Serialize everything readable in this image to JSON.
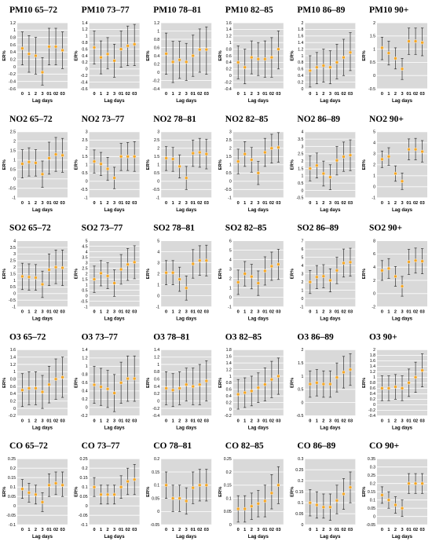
{
  "figure": {
    "ylabel": "ER%",
    "xlabel": "Lag days",
    "lags": [
      "0",
      "1",
      "2",
      "3",
      "01",
      "02",
      "03"
    ],
    "colors": {
      "panel_bg": "#d9d9d9",
      "grid": "#ffffff",
      "whisker": "#333333",
      "point": "#f5a623",
      "point_stroke": "#ffffff"
    }
  },
  "chart_data": [
    {
      "type": "scatter",
      "title": "PM10 65–72",
      "ylim": [
        -0.6,
        1.2
      ],
      "yticks": [
        -0.6,
        -0.4,
        -0.2,
        0,
        0.2,
        0.4,
        0.6,
        0.8,
        1,
        1.2
      ],
      "y": [
        0.5,
        0.35,
        0.3,
        -0.15,
        0.55,
        0.55,
        0.45
      ],
      "lower": [
        0.05,
        -0.15,
        -0.2,
        -0.5,
        0.05,
        0.05,
        -0.05
      ],
      "upper": [
        0.95,
        0.85,
        0.8,
        0.25,
        1.05,
        1.05,
        0.95
      ]
    },
    {
      "type": "scatter",
      "title": "PM10 73–77",
      "ylim": [
        -0.6,
        1.4
      ],
      "yticks": [
        -0.6,
        -0.4,
        -0.2,
        0,
        0.2,
        0.4,
        0.6,
        0.8,
        1,
        1.2,
        1.4
      ],
      "y": [
        0.65,
        0.35,
        0.45,
        0.25,
        0.6,
        0.7,
        0.75
      ],
      "lower": [
        0.15,
        -0.15,
        0,
        -0.25,
        0.05,
        0.1,
        0.1
      ],
      "upper": [
        1.15,
        0.85,
        0.95,
        0.75,
        1.15,
        1.3,
        1.35
      ]
    },
    {
      "type": "scatter",
      "title": "PM10 78–81",
      "ylim": [
        -0.4,
        1.2
      ],
      "yticks": [
        -0.4,
        -0.2,
        0,
        0.2,
        0.4,
        0.6,
        0.8,
        1,
        1.2
      ],
      "y": [
        0.45,
        0.25,
        0.3,
        0.25,
        0.4,
        0.55,
        0.55
      ],
      "lower": [
        -0.05,
        -0.25,
        -0.15,
        -0.2,
        -0.1,
        0,
        -0.05
      ],
      "upper": [
        0.95,
        0.75,
        0.75,
        0.7,
        0.9,
        1.05,
        1.1
      ]
    },
    {
      "type": "scatter",
      "title": "PM10 82–85",
      "ylim": [
        -0.4,
        1.6
      ],
      "yticks": [
        -0.4,
        -0.2,
        0,
        0.2,
        0.4,
        0.6,
        0.8,
        1,
        1.2,
        1.4,
        1.6
      ],
      "y": [
        0.4,
        0.25,
        0.55,
        0.5,
        0.5,
        0.55,
        0.8
      ],
      "lower": [
        -0.1,
        -0.25,
        0.05,
        0,
        -0.05,
        -0.05,
        0.2
      ],
      "upper": [
        0.9,
        0.8,
        1.05,
        1,
        1.05,
        1.15,
        1.35
      ]
    },
    {
      "type": "scatter",
      "title": "PM10 86–89",
      "ylim": [
        0,
        2
      ],
      "yticks": [
        0,
        0.2,
        0.4,
        0.6,
        0.8,
        1,
        1.2,
        1.4,
        1.6,
        1.8,
        2
      ],
      "y": [
        0.55,
        0.65,
        0.7,
        0.65,
        0.8,
        0.95,
        1.1
      ],
      "lower": [
        0.05,
        0.15,
        0.2,
        0.15,
        0.3,
        0.4,
        0.55
      ],
      "upper": [
        1,
        1.1,
        1.2,
        1.15,
        1.35,
        1.5,
        1.7
      ]
    },
    {
      "type": "scatter",
      "title": "PM10 90+",
      "ylim": [
        -0.5,
        2
      ],
      "yticks": [
        -0.5,
        0,
        0.5,
        1,
        1.5,
        2
      ],
      "y": [
        1.05,
        0.85,
        0.65,
        0.25,
        1.3,
        1.3,
        1.25
      ],
      "lower": [
        0.6,
        0.4,
        0.25,
        -0.15,
        0.8,
        0.8,
        0.75
      ],
      "upper": [
        1.45,
        1.3,
        1.05,
        0.65,
        1.8,
        1.8,
        1.8
      ]
    },
    {
      "type": "scatter",
      "title": "NO2 65–72",
      "ylim": [
        -1,
        2.5
      ],
      "yticks": [
        -1,
        -0.5,
        0,
        0.5,
        1,
        1.5,
        2,
        2.5
      ],
      "y": [
        0.8,
        0.9,
        0.85,
        0.25,
        1.1,
        1.3,
        1.25
      ],
      "lower": [
        0.05,
        0.15,
        0.15,
        -0.45,
        0.25,
        0.4,
        0.35
      ],
      "upper": [
        1.55,
        1.65,
        1.55,
        0.95,
        1.95,
        2.2,
        2.15
      ]
    },
    {
      "type": "scatter",
      "title": "NO2 73–77",
      "ylim": [
        -1,
        3
      ],
      "yticks": [
        -1,
        -0.5,
        0,
        0.5,
        1,
        1.5,
        2,
        2.5,
        3
      ],
      "y": [
        1.2,
        1.05,
        0.75,
        0.2,
        1.5,
        1.5,
        1.5
      ],
      "lower": [
        0.5,
        0.35,
        0.05,
        -0.45,
        0.65,
        0.65,
        0.6
      ],
      "upper": [
        1.9,
        1.75,
        1.45,
        0.85,
        2.3,
        2.35,
        2.4
      ]
    },
    {
      "type": "scatter",
      "title": "NO2 78–81",
      "ylim": [
        -1,
        3
      ],
      "yticks": [
        -1,
        -0.5,
        0,
        0.5,
        1,
        1.5,
        2,
        2.5,
        3
      ],
      "y": [
        1.4,
        1.35,
        0.9,
        0.2,
        1.7,
        1.75,
        1.65
      ],
      "lower": [
        0.65,
        0.6,
        0.2,
        -0.5,
        0.9,
        0.85,
        0.75
      ],
      "upper": [
        2.1,
        2.05,
        1.6,
        0.9,
        2.5,
        2.6,
        2.55
      ]
    },
    {
      "type": "scatter",
      "title": "NO2 82–85",
      "ylim": [
        -1,
        3
      ],
      "yticks": [
        -1,
        -0.5,
        0,
        0.5,
        1,
        1.5,
        2,
        2.5,
        3
      ],
      "y": [
        1.2,
        1.65,
        1.3,
        0.5,
        1.75,
        2,
        2.05
      ],
      "lower": [
        0.45,
        0.9,
        0.55,
        -0.2,
        0.9,
        1.1,
        1.15
      ],
      "upper": [
        1.95,
        2.4,
        2.05,
        1.2,
        2.6,
        2.85,
        2.95
      ]
    },
    {
      "type": "scatter",
      "title": "NO2 86–89",
      "ylim": [
        -0.5,
        4
      ],
      "yticks": [
        -0.5,
        0,
        0.5,
        1,
        1.5,
        2,
        2.5,
        3,
        3.5,
        4
      ],
      "y": [
        1.5,
        1.7,
        1.15,
        0.9,
        2.05,
        2.3,
        2.4
      ],
      "lower": [
        0.65,
        0.85,
        0.3,
        0.05,
        1.05,
        1.3,
        1.35
      ],
      "upper": [
        2.35,
        2.55,
        2,
        1.75,
        3,
        3.3,
        3.45
      ]
    },
    {
      "type": "scatter",
      "title": "NO2 90+",
      "ylim": [
        -1,
        5
      ],
      "yticks": [
        -1,
        0,
        1,
        2,
        3,
        4,
        5
      ],
      "y": [
        2.5,
        2.75,
        1.2,
        0.5,
        3.4,
        3.4,
        3.2
      ],
      "lower": [
        1.75,
        1.95,
        0.5,
        -0.25,
        2.45,
        2.45,
        2.25
      ],
      "upper": [
        3.25,
        3.55,
        1.9,
        1.25,
        4.35,
        4.4,
        4.2
      ]
    },
    {
      "type": "scatter",
      "title": "SO2 65–72",
      "ylim": [
        -1,
        4
      ],
      "yticks": [
        -1,
        -0.5,
        0,
        0.5,
        1,
        1.5,
        2,
        2.5,
        3,
        3.5,
        4
      ],
      "y": [
        1.3,
        1.25,
        1.2,
        0.7,
        1.8,
        2,
        1.95
      ],
      "lower": [
        0.3,
        0.25,
        0.25,
        -0.3,
        0.6,
        0.75,
        0.6
      ],
      "upper": [
        2.3,
        2.25,
        2.2,
        1.7,
        3,
        3.3,
        3.3
      ]
    },
    {
      "type": "scatter",
      "title": "SO2 73–77",
      "ylim": [
        -1,
        5
      ],
      "yticks": [
        -1,
        -0.5,
        0,
        0.5,
        1,
        1.5,
        2,
        2.5,
        3,
        3.5,
        4,
        4.5,
        5
      ],
      "y": [
        1.5,
        2.05,
        1.8,
        1.15,
        2.4,
        2.85,
        3.05
      ],
      "lower": [
        0.3,
        0.9,
        0.65,
        -0.05,
        1.05,
        1.4,
        1.55
      ],
      "upper": [
        2.7,
        3.2,
        3,
        2.35,
        3.75,
        4.3,
        4.55
      ]
    },
    {
      "type": "scatter",
      "title": "SO2 78–81",
      "ylim": [
        -1,
        5
      ],
      "yticks": [
        -1,
        0,
        1,
        2,
        3,
        4,
        5
      ],
      "y": [
        2.1,
        2.1,
        1.5,
        0.7,
        2.9,
        3.2,
        3.2
      ],
      "lower": [
        1,
        1,
        0.4,
        -0.4,
        1.6,
        1.85,
        1.8
      ],
      "upper": [
        3.2,
        3.2,
        2.6,
        1.8,
        4.2,
        4.55,
        4.6
      ]
    },
    {
      "type": "scatter",
      "title": "SO2 82–85",
      "ylim": [
        -1,
        6
      ],
      "yticks": [
        -1,
        0,
        1,
        2,
        3,
        4,
        5,
        6
      ],
      "y": [
        1.6,
        2.5,
        2.2,
        1.5,
        2.8,
        3.3,
        3.5
      ],
      "lower": [
        0.3,
        1.2,
        0.9,
        0.2,
        1.3,
        1.8,
        1.9
      ],
      "upper": [
        2.9,
        3.8,
        3.5,
        2.8,
        4.3,
        4.8,
        5.1
      ]
    },
    {
      "type": "scatter",
      "title": "SO2 86–89",
      "ylim": [
        -1,
        7
      ],
      "yticks": [
        -1,
        0,
        1,
        2,
        3,
        4,
        5,
        6,
        7
      ],
      "y": [
        2,
        2.6,
        2.7,
        2.2,
        3.4,
        4.3,
        4.4
      ],
      "lower": [
        0.6,
        1.2,
        1.3,
        0.8,
        1.8,
        2.6,
        2.7
      ],
      "upper": [
        3.4,
        4,
        4.1,
        3.6,
        5,
        6,
        6.1
      ]
    },
    {
      "type": "scatter",
      "title": "SO2 90+",
      "ylim": [
        -2,
        8
      ],
      "yticks": [
        -2,
        0,
        2,
        4,
        6,
        8
      ],
      "y": [
        3.5,
        3.8,
        2.6,
        1.1,
        4.8,
        5,
        4.9
      ],
      "lower": [
        2,
        2.3,
        1.1,
        -0.4,
        2.9,
        3.1,
        3
      ],
      "upper": [
        5,
        5.3,
        4.1,
        2.6,
        6.7,
        6.9,
        6.8
      ]
    },
    {
      "type": "scatter",
      "title": "O3 65–72",
      "ylim": [
        -0.2,
        1.6
      ],
      "yticks": [
        -0.2,
        0,
        0.2,
        0.4,
        0.6,
        0.8,
        1,
        1.2,
        1.4,
        1.6
      ],
      "y": [
        0.5,
        0.55,
        0.55,
        0.45,
        0.65,
        0.8,
        0.85
      ],
      "lower": [
        0.05,
        0.1,
        0.1,
        0,
        0.15,
        0.25,
        0.3
      ],
      "upper": [
        0.95,
        1,
        1,
        0.9,
        1.15,
        1.35,
        1.4
      ]
    },
    {
      "type": "scatter",
      "title": "O3 73–77",
      "ylim": [
        -0.2,
        1.4
      ],
      "yticks": [
        -0.2,
        0,
        0.2,
        0.4,
        0.6,
        0.8,
        1,
        1.2,
        1.4
      ],
      "y": [
        0.55,
        0.5,
        0.45,
        0.35,
        0.6,
        0.7,
        0.7
      ],
      "lower": [
        0.1,
        0.05,
        0,
        -0.1,
        0.1,
        0.15,
        0.15
      ],
      "upper": [
        1,
        0.95,
        0.9,
        0.8,
        1.1,
        1.25,
        1.25
      ]
    },
    {
      "type": "scatter",
      "title": "O3 78–81",
      "ylim": [
        -0.4,
        1.4
      ],
      "yticks": [
        -0.4,
        -0.2,
        0,
        0.2,
        0.4,
        0.6,
        0.8,
        1,
        1.2,
        1.4
      ],
      "y": [
        0.35,
        0.3,
        0.35,
        0.45,
        0.4,
        0.45,
        0.55
      ],
      "lower": [
        -0.1,
        -0.15,
        -0.1,
        0,
        -0.1,
        -0.1,
        0
      ],
      "upper": [
        0.8,
        0.75,
        0.8,
        0.9,
        0.9,
        1,
        1.1
      ]
    },
    {
      "type": "scatter",
      "title": "O3 82–85",
      "ylim": [
        -0.2,
        1.8
      ],
      "yticks": [
        -0.2,
        0,
        0.2,
        0.4,
        0.6,
        0.8,
        1,
        1.2,
        1.4,
        1.6,
        1.8
      ],
      "y": [
        0.45,
        0.5,
        0.55,
        0.65,
        0.75,
        0.9,
        1
      ],
      "lower": [
        0,
        0.05,
        0.1,
        0.2,
        0.25,
        0.35,
        0.45
      ],
      "upper": [
        0.9,
        0.95,
        1,
        1.1,
        1.25,
        1.45,
        1.55
      ]
    },
    {
      "type": "scatter",
      "title": "O3 86–89",
      "ylim": [
        -0.5,
        2
      ],
      "yticks": [
        -0.5,
        0,
        0.5,
        1,
        1.5,
        2
      ],
      "y": [
        0.7,
        0.75,
        0.7,
        0.7,
        0.95,
        1.15,
        1.25
      ],
      "lower": [
        0.2,
        0.25,
        0.2,
        0.2,
        0.4,
        0.55,
        0.65
      ],
      "upper": [
        1.2,
        1.25,
        1.2,
        1.2,
        1.5,
        1.75,
        1.85
      ]
    },
    {
      "type": "scatter",
      "title": "O3 90+",
      "ylim": [
        -0.4,
        2
      ],
      "yticks": [
        -0.4,
        -0.2,
        0,
        0.2,
        0.4,
        0.6,
        0.8,
        1,
        1.2,
        1.4,
        1.6,
        1.8,
        2
      ],
      "y": [
        0.6,
        0.6,
        0.65,
        0.6,
        0.8,
        1,
        1.25
      ],
      "lower": [
        0.15,
        0.15,
        0.2,
        0.15,
        0.3,
        0.45,
        0.65
      ],
      "upper": [
        1.05,
        1.05,
        1.1,
        1.05,
        1.3,
        1.55,
        1.85
      ]
    },
    {
      "type": "scatter",
      "title": "CO 65–72",
      "ylim": [
        -0.1,
        0.25
      ],
      "yticks": [
        -0.1,
        -0.05,
        0,
        0.05,
        0.1,
        0.15,
        0.2,
        0.25
      ],
      "y": [
        0.09,
        0.07,
        0.06,
        0.02,
        0.11,
        0.12,
        0.11
      ],
      "lower": [
        0.04,
        0.02,
        0.01,
        -0.03,
        0.05,
        0.06,
        0.05
      ],
      "upper": [
        0.14,
        0.12,
        0.11,
        0.07,
        0.17,
        0.18,
        0.18
      ]
    },
    {
      "type": "scatter",
      "title": "CO 73–77",
      "ylim": [
        -0.1,
        0.25
      ],
      "yticks": [
        -0.1,
        -0.05,
        0,
        0.05,
        0.1,
        0.15,
        0.2,
        0.25
      ],
      "y": [
        0.1,
        0.06,
        0.06,
        0.06,
        0.1,
        0.13,
        0.14
      ],
      "lower": [
        0.05,
        0.01,
        0.01,
        0.01,
        0.04,
        0.06,
        0.06
      ],
      "upper": [
        0.15,
        0.11,
        0.11,
        0.11,
        0.16,
        0.2,
        0.22
      ]
    },
    {
      "type": "scatter",
      "title": "CO 78–81",
      "ylim": [
        -0.05,
        0.2
      ],
      "yticks": [
        -0.05,
        0,
        0.05,
        0.1,
        0.15,
        0.2
      ],
      "y": [
        0.1,
        0.05,
        0.05,
        0.04,
        0.09,
        0.1,
        0.1
      ],
      "lower": [
        0.05,
        0,
        0,
        -0.01,
        0.03,
        0.04,
        0.04
      ],
      "upper": [
        0.15,
        0.1,
        0.1,
        0.09,
        0.15,
        0.16,
        0.16
      ]
    },
    {
      "type": "scatter",
      "title": "CO 82–85",
      "ylim": [
        0,
        0.25
      ],
      "yticks": [
        0,
        0.05,
        0.1,
        0.15,
        0.2,
        0.25
      ],
      "y": [
        0.06,
        0.06,
        0.07,
        0.08,
        0.09,
        0.12,
        0.15
      ],
      "lower": [
        0.01,
        0.01,
        0.02,
        0.03,
        0.03,
        0.06,
        0.08
      ],
      "upper": [
        0.11,
        0.11,
        0.12,
        0.13,
        0.15,
        0.19,
        0.22
      ]
    },
    {
      "type": "scatter",
      "title": "CO 86–89",
      "ylim": [
        0,
        0.3
      ],
      "yticks": [
        0,
        0.05,
        0.1,
        0.15,
        0.2,
        0.25,
        0.3
      ],
      "y": [
        0.1,
        0.09,
        0.08,
        0.08,
        0.11,
        0.14,
        0.17
      ],
      "lower": [
        0.04,
        0.03,
        0.03,
        0.02,
        0.05,
        0.07,
        0.1
      ],
      "upper": [
        0.16,
        0.15,
        0.14,
        0.14,
        0.18,
        0.21,
        0.24
      ]
    },
    {
      "type": "scatter",
      "title": "CO 90+",
      "ylim": [
        -0.05,
        0.35
      ],
      "yticks": [
        -0.05,
        0,
        0.05,
        0.1,
        0.15,
        0.2,
        0.25,
        0.3,
        0.35
      ],
      "y": [
        0.13,
        0.1,
        0.07,
        0.05,
        0.2,
        0.2,
        0.2
      ],
      "lower": [
        0.08,
        0.05,
        0.02,
        0,
        0.14,
        0.14,
        0.14
      ],
      "upper": [
        0.18,
        0.15,
        0.12,
        0.1,
        0.26,
        0.26,
        0.26
      ]
    }
  ]
}
